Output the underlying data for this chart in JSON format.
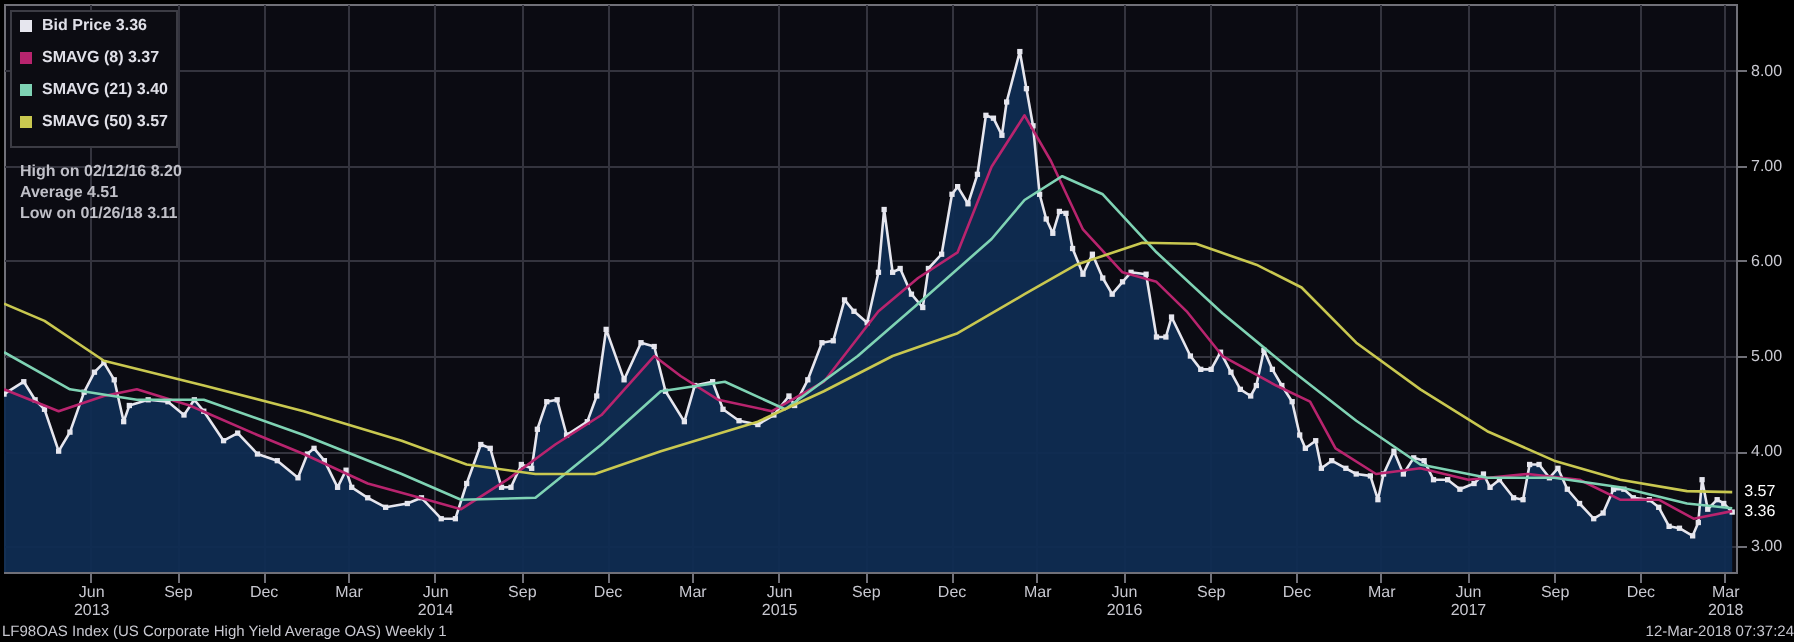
{
  "chart_data": {
    "type": "area",
    "xlim": [
      "2013-03-01",
      "2018-03-13"
    ],
    "ylim": [
      2.73,
      8.7
    ],
    "xticks": [
      {
        "value": "2013-06-01",
        "label": "Jun\n2013"
      },
      {
        "value": "2013-09-01",
        "label": "Sep"
      },
      {
        "value": "2013-12-01",
        "label": "Dec"
      },
      {
        "value": "2014-03-01",
        "label": "Mar"
      },
      {
        "value": "2014-06-01",
        "label": "Jun\n2014"
      },
      {
        "value": "2014-09-01",
        "label": "Sep"
      },
      {
        "value": "2014-12-01",
        "label": "Dec"
      },
      {
        "value": "2015-03-01",
        "label": "Mar"
      },
      {
        "value": "2015-06-01",
        "label": "Jun\n2015"
      },
      {
        "value": "2015-09-01",
        "label": "Sep"
      },
      {
        "value": "2015-12-01",
        "label": "Dec"
      },
      {
        "value": "2016-03-01",
        "label": "Mar"
      },
      {
        "value": "2016-06-01",
        "label": "Jun\n2016"
      },
      {
        "value": "2016-09-01",
        "label": "Sep"
      },
      {
        "value": "2016-12-01",
        "label": "Dec"
      },
      {
        "value": "2017-03-01",
        "label": "Mar"
      },
      {
        "value": "2017-06-01",
        "label": "Jun\n2017"
      },
      {
        "value": "2017-09-01",
        "label": "Sep"
      },
      {
        "value": "2017-12-01",
        "label": "Dec"
      },
      {
        "value": "2018-03-01",
        "label": "Mar\n2018"
      }
    ],
    "yticks": [
      {
        "value": 3,
        "label": "3.00"
      },
      {
        "value": 4,
        "label": "4.00"
      },
      {
        "value": 5,
        "label": "5.00"
      },
      {
        "value": 6,
        "label": "6.00"
      },
      {
        "value": 7,
        "label": "7.00"
      },
      {
        "value": 8,
        "label": "8.00"
      }
    ],
    "grid": true,
    "legend": "top left",
    "series": [
      {
        "name": "Bid Price 3.36",
        "marker": "square",
        "color": "#e6e6ee",
        "x": [
          "2013-03-01",
          "2013-03-22",
          "2013-04-03",
          "2013-04-13",
          "2013-04-28",
          "2013-05-10",
          "2013-05-25",
          "2013-06-05",
          "2013-06-15",
          "2013-06-26",
          "2013-07-06",
          "2013-07-12",
          "2013-08-01",
          "2013-08-22",
          "2013-09-08",
          "2013-09-19",
          "2013-09-29",
          "2013-10-20",
          "2013-11-04",
          "2013-11-25",
          "2013-12-16",
          "2014-01-07",
          "2014-01-17",
          "2014-01-24",
          "2014-02-04",
          "2014-02-18",
          "2014-02-27",
          "2014-03-05",
          "2014-03-22",
          "2014-04-10",
          "2014-05-03",
          "2014-05-18",
          "2014-06-08",
          "2014-06-23",
          "2014-07-05",
          "2014-07-20",
          "2014-07-30",
          "2014-08-11",
          "2014-08-21",
          "2014-09-01",
          "2014-09-12",
          "2014-09-18",
          "2014-09-28",
          "2014-10-09",
          "2014-10-19",
          "2014-11-10",
          "2014-11-20",
          "2014-11-30",
          "2014-12-19",
          "2015-01-06",
          "2015-01-20",
          "2015-02-01",
          "2015-02-21",
          "2015-03-04",
          "2015-03-23",
          "2015-04-03",
          "2015-04-20",
          "2015-05-10",
          "2015-05-27",
          "2015-06-12",
          "2015-06-18",
          "2015-07-02",
          "2015-07-17",
          "2015-07-29",
          "2015-08-10",
          "2015-08-20",
          "2015-09-03",
          "2015-09-15",
          "2015-09-21",
          "2015-09-30",
          "2015-10-08",
          "2015-10-20",
          "2015-11-01",
          "2015-11-07",
          "2015-11-21",
          "2015-12-02",
          "2015-12-08",
          "2015-12-19",
          "2015-12-29",
          "2016-01-07",
          "2016-01-15",
          "2016-01-24",
          "2016-01-29",
          "2016-02-12",
          "2016-02-19",
          "2016-02-26",
          "2016-03-04",
          "2016-03-11",
          "2016-03-18",
          "2016-03-25",
          "2016-04-01",
          "2016-04-08",
          "2016-04-19",
          "2016-04-29",
          "2016-05-10",
          "2016-05-20",
          "2016-05-31",
          "2016-06-09",
          "2016-06-25",
          "2016-07-06",
          "2016-07-16",
          "2016-07-22",
          "2016-08-11",
          "2016-08-22",
          "2016-09-02",
          "2016-09-12",
          "2016-09-23",
          "2016-10-03",
          "2016-10-14",
          "2016-10-20",
          "2016-10-28",
          "2016-11-06",
          "2016-11-16",
          "2016-11-27",
          "2016-12-05",
          "2016-12-11",
          "2016-12-22",
          "2016-12-28",
          "2017-01-08",
          "2017-01-23",
          "2017-02-03",
          "2017-02-18",
          "2017-02-26",
          "2017-03-04",
          "2017-03-15",
          "2017-03-25",
          "2017-04-05",
          "2017-04-16",
          "2017-04-26",
          "2017-05-11",
          "2017-05-24",
          "2017-06-08",
          "2017-06-18",
          "2017-06-25",
          "2017-07-05",
          "2017-07-20",
          "2017-07-30",
          "2017-08-06",
          "2017-08-16",
          "2017-08-27",
          "2017-09-05",
          "2017-09-15",
          "2017-09-28",
          "2017-10-13",
          "2017-10-23",
          "2017-11-03",
          "2017-11-14",
          "2017-11-24",
          "2017-12-11",
          "2017-12-21",
          "2018-01-01",
          "2018-01-12",
          "2018-01-26",
          "2018-02-01",
          "2018-02-05",
          "2018-02-11",
          "2018-02-21",
          "2018-02-28",
          "2018-03-09"
        ],
        "values": [
          4.6,
          4.73,
          4.54,
          4.44,
          4.0,
          4.2,
          4.62,
          4.83,
          4.93,
          4.75,
          4.31,
          4.48,
          4.54,
          4.52,
          4.38,
          4.54,
          4.42,
          4.11,
          4.19,
          3.97,
          3.9,
          3.72,
          3.97,
          4.03,
          3.9,
          3.62,
          3.8,
          3.62,
          3.51,
          3.41,
          3.45,
          3.51,
          3.29,
          3.29,
          3.66,
          4.07,
          4.03,
          3.62,
          3.62,
          3.86,
          3.82,
          4.23,
          4.52,
          4.54,
          4.17,
          4.31,
          4.58,
          5.28,
          4.75,
          5.14,
          5.1,
          4.63,
          4.31,
          4.69,
          4.73,
          4.44,
          4.32,
          4.28,
          4.38,
          4.58,
          4.48,
          4.75,
          5.14,
          5.16,
          5.59,
          5.47,
          5.35,
          5.88,
          6.54,
          5.88,
          5.92,
          5.65,
          5.51,
          5.92,
          6.07,
          6.7,
          6.78,
          6.6,
          6.91,
          7.53,
          7.5,
          7.32,
          7.67,
          8.2,
          7.81,
          7.42,
          6.7,
          6.44,
          6.29,
          6.52,
          6.5,
          6.13,
          5.86,
          6.07,
          5.82,
          5.65,
          5.78,
          5.88,
          5.86,
          5.2,
          5.2,
          5.41,
          5.0,
          4.86,
          4.86,
          5.04,
          4.83,
          4.65,
          4.58,
          4.69,
          5.06,
          4.86,
          4.69,
          4.52,
          4.17,
          4.03,
          4.11,
          3.82,
          3.9,
          3.82,
          3.76,
          3.74,
          3.49,
          3.76,
          4.0,
          3.76,
          3.93,
          3.9,
          3.7,
          3.7,
          3.6,
          3.66,
          3.76,
          3.62,
          3.7,
          3.51,
          3.49,
          3.86,
          3.86,
          3.72,
          3.82,
          3.6,
          3.45,
          3.29,
          3.35,
          3.6,
          3.6,
          3.51,
          3.49,
          3.41,
          3.21,
          3.19,
          3.11,
          3.25,
          3.7,
          3.39,
          3.49,
          3.45,
          3.36
        ]
      },
      {
        "name": "SMAVG (8) 3.37",
        "type": "line",
        "color": "#b8246e",
        "x": [
          "2013-03-01",
          "2013-04-28",
          "2013-06-15",
          "2013-07-20",
          "2013-09-14",
          "2013-11-25",
          "2014-01-13",
          "2014-03-22",
          "2014-05-24",
          "2014-06-29",
          "2014-08-17",
          "2014-10-07",
          "2014-11-25",
          "2015-01-20",
          "2015-02-17",
          "2015-03-29",
          "2015-05-25",
          "2015-07-19",
          "2015-09-15",
          "2015-10-27",
          "2015-12-08",
          "2016-01-13",
          "2016-02-17",
          "2016-03-16",
          "2016-04-19",
          "2016-05-31",
          "2016-07-06",
          "2016-08-07",
          "2016-09-14",
          "2016-11-10",
          "2016-12-16",
          "2017-01-12",
          "2017-02-24",
          "2017-04-12",
          "2017-06-02",
          "2017-08-04",
          "2017-09-28",
          "2017-11-10",
          "2017-12-21",
          "2018-01-27",
          "2018-03-09"
        ],
        "values": [
          4.65,
          4.42,
          4.58,
          4.65,
          4.48,
          4.17,
          3.97,
          3.66,
          3.49,
          3.39,
          3.7,
          4.07,
          4.38,
          5.0,
          4.79,
          4.54,
          4.42,
          4.73,
          5.47,
          5.82,
          6.09,
          6.99,
          7.53,
          7.05,
          6.33,
          5.88,
          5.78,
          5.47,
          5.0,
          4.69,
          4.52,
          4.03,
          3.76,
          3.82,
          3.7,
          3.76,
          3.7,
          3.49,
          3.49,
          3.29,
          3.37
        ]
      },
      {
        "name": "SMAVG (21) 3.40",
        "type": "line",
        "color": "#7fd3b4",
        "x": [
          "2013-03-01",
          "2013-05-10",
          "2013-07-20",
          "2013-09-29",
          "2014-01-13",
          "2014-04-27",
          "2014-06-29",
          "2014-09-16",
          "2014-11-25",
          "2015-01-27",
          "2015-04-05",
          "2015-06-08",
          "2015-08-24",
          "2015-11-03",
          "2016-01-13",
          "2016-02-17",
          "2016-03-28",
          "2016-05-10",
          "2016-07-06",
          "2016-09-14",
          "2016-11-25",
          "2017-02-03",
          "2017-04-12",
          "2017-06-22",
          "2017-09-01",
          "2017-11-10",
          "2018-01-20",
          "2018-03-09"
        ],
        "values": [
          5.04,
          4.65,
          4.54,
          4.54,
          4.17,
          3.76,
          3.49,
          3.51,
          4.07,
          4.63,
          4.73,
          4.44,
          5.0,
          5.61,
          6.23,
          6.64,
          6.89,
          6.7,
          6.09,
          5.45,
          4.86,
          4.32,
          3.86,
          3.72,
          3.72,
          3.62,
          3.45,
          3.4
        ]
      },
      {
        "name": "SMAVG (50) 3.57",
        "type": "line",
        "color": "#c9c850",
        "x": [
          "2013-03-01",
          "2013-04-13",
          "2013-06-15",
          "2013-09-29",
          "2014-01-13",
          "2014-04-27",
          "2014-07-05",
          "2014-09-16",
          "2014-11-18",
          "2015-01-27",
          "2015-05-10",
          "2015-07-19",
          "2015-09-30",
          "2015-12-08",
          "2016-02-17",
          "2016-04-12",
          "2016-06-21",
          "2016-08-17",
          "2016-10-20",
          "2016-12-07",
          "2017-02-03",
          "2017-04-12",
          "2017-06-22",
          "2017-09-01",
          "2017-11-10",
          "2018-01-20",
          "2018-03-09"
        ],
        "values": [
          5.55,
          5.37,
          4.95,
          4.69,
          4.42,
          4.11,
          3.86,
          3.76,
          3.76,
          4.0,
          4.31,
          4.63,
          5.0,
          5.24,
          5.65,
          5.96,
          6.19,
          6.18,
          5.96,
          5.72,
          5.14,
          4.65,
          4.21,
          3.9,
          3.7,
          3.58,
          3.57
        ]
      }
    ],
    "annotations": [
      "High on 02/12/16 8.20",
      "Average 4.51",
      "Low on 01/26/18 3.11",
      "LF98OAS Index (US Corporate High Yield Average OAS)  Weekly 1",
      "12-Mar-2018 07:37:24",
      {
        "text": "3.57",
        "x": "2018-03-09",
        "y": 3.57
      },
      {
        "text": "3.36",
        "x": "2018-03-09",
        "y": 3.36
      }
    ]
  }
}
